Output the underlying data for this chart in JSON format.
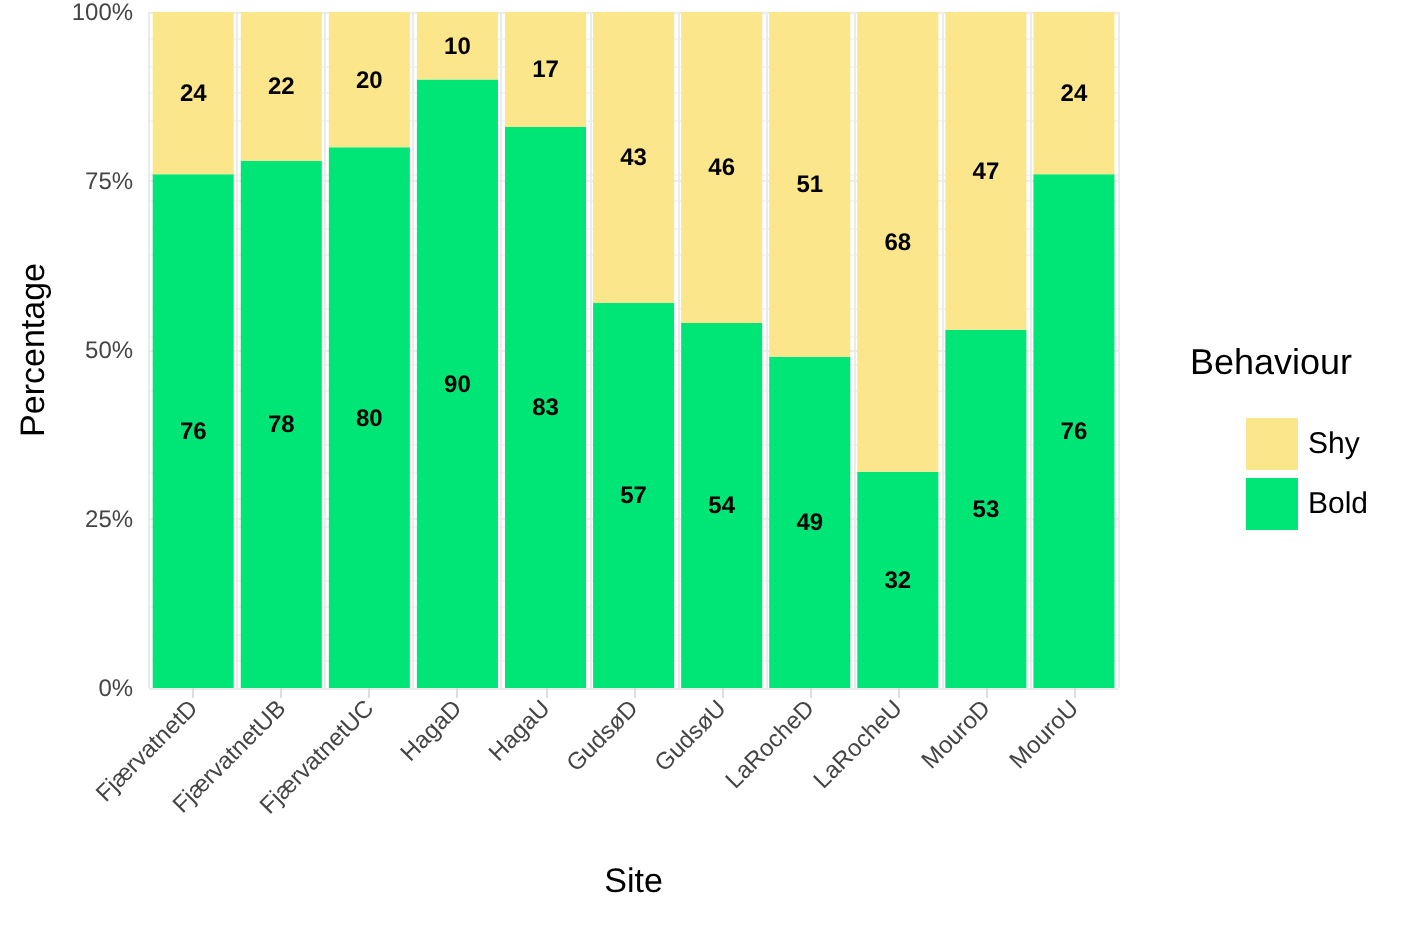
{
  "chart_data": {
    "type": "bar",
    "stacked": true,
    "xlabel": "Site",
    "ylabel": "Percentage",
    "legend_title": "Behaviour",
    "legend": "right",
    "grid": true,
    "data_labels": true,
    "categories": [
      "FjærvatnetD",
      "FjærvatnetUB",
      "FjærvatnetUC",
      "HagaD",
      "HagaU",
      "GudsøD",
      "GudsøU",
      "LaRocheD",
      "LaRocheU",
      "MouroD",
      "MouroU"
    ],
    "series": [
      {
        "name": "Bold",
        "color": "#00e676",
        "values": [
          76,
          78,
          80,
          90,
          83,
          57,
          54,
          49,
          32,
          53,
          76
        ]
      },
      {
        "name": "Shy",
        "color": "#fce68c",
        "values": [
          24,
          22,
          20,
          10,
          17,
          43,
          46,
          51,
          68,
          47,
          24
        ]
      }
    ],
    "ylim": [
      0,
      100
    ],
    "yticks": [
      {
        "value": 0,
        "label": "0%"
      },
      {
        "value": 25,
        "label": "25%"
      },
      {
        "value": 50,
        "label": "50%"
      },
      {
        "value": 75,
        "label": "75%"
      },
      {
        "value": 100,
        "label": "100%"
      }
    ]
  }
}
